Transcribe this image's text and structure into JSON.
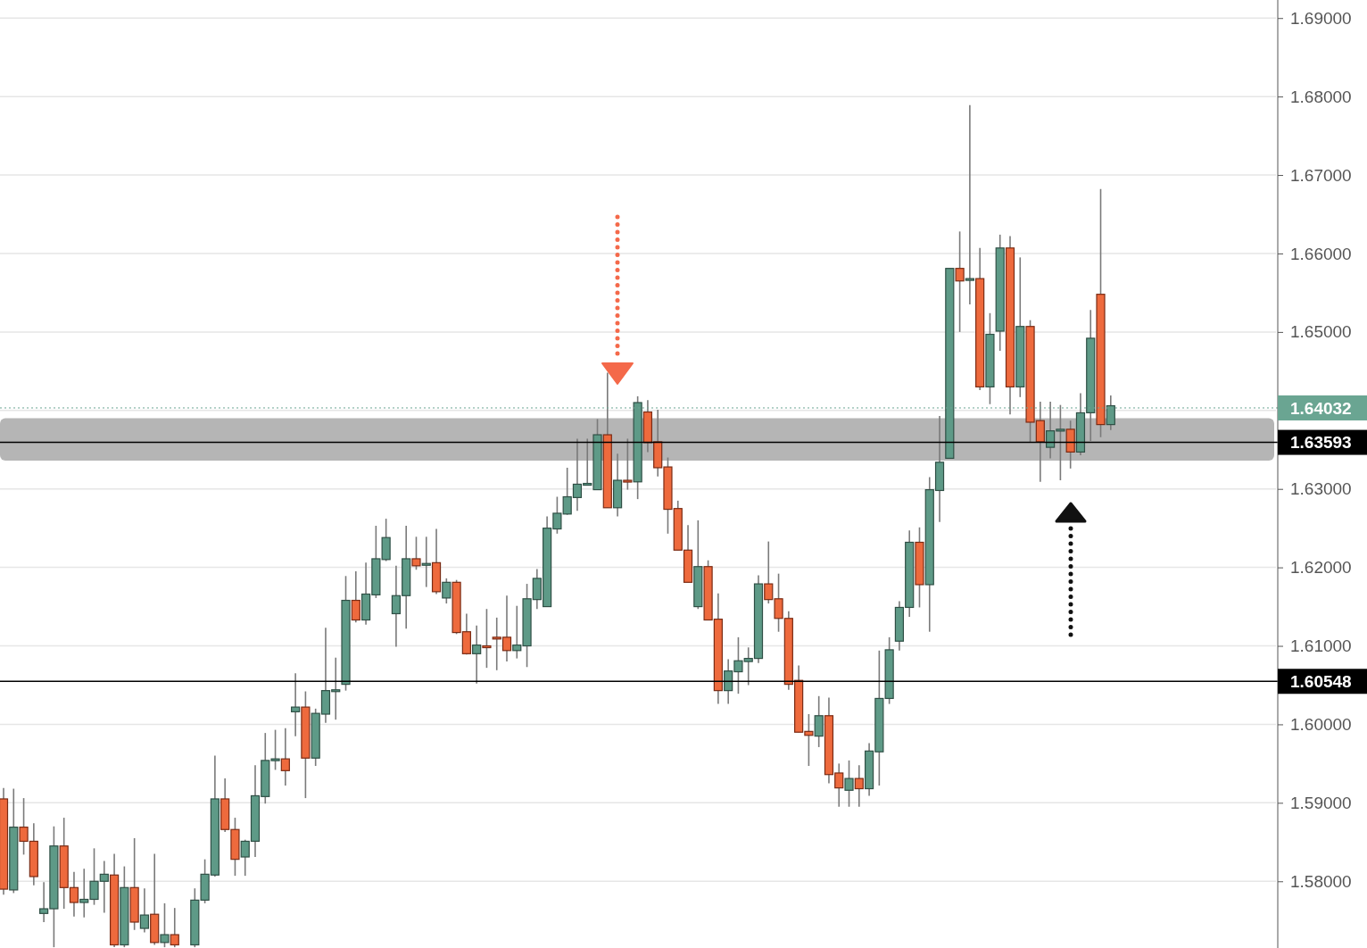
{
  "chart_data": {
    "type": "candlestick",
    "categories": [
      null,
      null,
      null,
      null,
      null,
      null,
      null,
      null,
      null,
      null,
      null,
      null,
      null,
      null,
      null,
      null,
      null,
      null,
      null,
      null,
      null,
      null,
      null,
      null,
      null,
      null,
      null,
      null,
      null,
      null,
      null,
      null,
      null,
      null,
      null,
      null,
      null,
      null,
      null,
      null,
      null,
      null,
      null,
      null,
      null,
      null,
      null,
      null,
      null,
      null,
      null,
      null,
      null,
      null,
      null,
      null,
      null,
      null,
      null,
      null,
      null,
      null,
      null,
      null,
      null,
      null,
      null,
      null,
      null,
      null,
      null,
      null,
      null,
      null,
      null,
      null,
      null,
      null,
      null,
      null,
      null,
      null,
      null,
      null,
      null,
      null,
      null,
      null,
      null,
      null,
      null,
      null,
      null,
      null,
      null,
      null,
      null,
      null,
      null,
      null,
      null,
      null,
      null,
      null,
      null,
      null,
      null,
      null,
      null,
      null,
      null,
      null,
      null,
      null,
      null,
      null,
      null,
      null,
      null,
      null,
      null,
      null,
      null,
      null,
      null,
      null,
      null
    ],
    "ohlc": [
      [
        1.5905,
        1.5919,
        1.5783,
        1.579
      ],
      [
        1.5789,
        1.5918,
        1.5785,
        1.5869
      ],
      [
        1.5869,
        1.5906,
        1.5834,
        1.5851
      ],
      [
        1.5851,
        1.5874,
        1.5795,
        1.5806
      ],
      [
        1.5759,
        1.5799,
        1.5748,
        1.5765
      ],
      [
        1.5765,
        1.587,
        1.5716,
        1.5845
      ],
      [
        1.5845,
        1.5881,
        1.5765,
        1.5792
      ],
      [
        1.5792,
        1.5812,
        1.5755,
        1.5773
      ],
      [
        1.5773,
        1.5816,
        1.5754,
        1.5777
      ],
      [
        1.5777,
        1.5842,
        1.577,
        1.58
      ],
      [
        1.58,
        1.5826,
        1.576,
        1.5809
      ],
      [
        1.5808,
        1.5835,
        1.5716,
        1.5719
      ],
      [
        1.5719,
        1.5819,
        1.5716,
        1.5792
      ],
      [
        1.5792,
        1.5855,
        1.5738,
        1.5748
      ],
      [
        1.574,
        1.5791,
        1.5735,
        1.5757
      ],
      [
        1.5758,
        1.5835,
        1.5719,
        1.5722
      ],
      [
        1.5722,
        1.5772,
        1.5716,
        1.5732
      ],
      [
        1.5732,
        1.5766,
        1.5716,
        1.5719
      ],
      null,
      [
        1.5719,
        1.5791,
        1.5716,
        1.5776
      ],
      [
        1.5776,
        1.5828,
        1.5772,
        1.5809
      ],
      [
        1.5808,
        1.596,
        1.5806,
        1.5905
      ],
      [
        1.5905,
        1.5931,
        1.5863,
        1.5866
      ],
      [
        1.5866,
        1.5881,
        1.5807,
        1.5828
      ],
      [
        1.5831,
        1.5853,
        1.5807,
        1.5851
      ],
      [
        1.5851,
        1.5948,
        1.5831,
        1.5909
      ],
      [
        1.5908,
        1.5989,
        1.5899,
        1.5954
      ],
      [
        1.5954,
        1.5993,
        1.5942,
        1.5956
      ],
      [
        1.5956,
        1.5995,
        1.5922,
        1.5941
      ],
      [
        1.6016,
        1.6065,
        1.5985,
        1.6022
      ],
      [
        1.6022,
        1.6042,
        1.5906,
        1.5957
      ],
      [
        1.5957,
        1.602,
        1.5947,
        1.6014
      ],
      [
        1.6013,
        1.6123,
        1.6002,
        1.6043
      ],
      [
        1.6043,
        1.6085,
        1.6006,
        1.6044
      ],
      [
        1.6051,
        1.6189,
        1.6043,
        1.6158
      ],
      [
        1.6158,
        1.6195,
        1.613,
        1.6133
      ],
      [
        1.6133,
        1.6206,
        1.6127,
        1.6166
      ],
      [
        1.6165,
        1.6253,
        1.6161,
        1.6211
      ],
      [
        1.621,
        1.6262,
        1.6208,
        1.6238
      ],
      [
        1.6141,
        1.6202,
        1.6099,
        1.6164
      ],
      [
        1.6164,
        1.6253,
        1.6122,
        1.6211
      ],
      [
        1.6211,
        1.6239,
        1.6197,
        1.6202
      ],
      [
        1.6203,
        1.6239,
        1.6175,
        1.6205
      ],
      [
        1.6206,
        1.6249,
        1.6166,
        1.6169
      ],
      [
        1.6161,
        1.6186,
        1.6154,
        1.6181
      ],
      [
        1.6181,
        1.6184,
        1.6115,
        1.6117
      ],
      [
        1.6118,
        1.6141,
        1.6089,
        1.609
      ],
      [
        1.609,
        1.6126,
        1.6052,
        1.6101
      ],
      [
        1.61,
        1.6147,
        1.6072,
        1.6099
      ],
      [
        1.6111,
        1.6136,
        1.6069,
        1.611
      ],
      [
        1.6111,
        1.6164,
        1.608,
        1.6094
      ],
      [
        1.6094,
        1.6151,
        1.6084,
        1.6101
      ],
      [
        1.61,
        1.6179,
        1.6073,
        1.616
      ],
      [
        1.6159,
        1.6198,
        1.6147,
        1.6186
      ],
      [
        1.615,
        1.6265,
        1.615,
        1.625
      ],
      [
        1.6249,
        1.629,
        1.6243,
        1.6269
      ],
      [
        1.6268,
        1.6327,
        1.6267,
        1.629
      ],
      [
        1.6289,
        1.6364,
        1.6272,
        1.6306
      ],
      [
        1.6305,
        1.6364,
        1.6305,
        1.6307
      ],
      [
        1.6299,
        1.6389,
        1.6299,
        1.6369
      ],
      [
        1.6369,
        1.6448,
        1.6276,
        1.6276
      ],
      [
        1.6276,
        1.6345,
        1.6265,
        1.6311
      ],
      [
        1.6311,
        1.6364,
        1.6299,
        1.631
      ],
      [
        1.6309,
        1.6418,
        1.6287,
        1.641
      ],
      [
        1.6398,
        1.6413,
        1.6347,
        1.6359
      ],
      [
        1.636,
        1.6401,
        1.6316,
        1.6327
      ],
      [
        1.6328,
        1.634,
        1.6243,
        1.6274
      ],
      [
        1.6275,
        1.6285,
        1.6222,
        1.6222
      ],
      [
        1.6222,
        1.6254,
        1.6181,
        1.6181
      ],
      [
        1.615,
        1.626,
        1.6147,
        1.6201
      ],
      [
        1.6201,
        1.6209,
        1.6133,
        1.6133
      ],
      [
        1.6134,
        1.6167,
        1.6026,
        1.6043
      ],
      [
        1.6043,
        1.6083,
        1.6026,
        1.6068
      ],
      [
        1.6067,
        1.6111,
        1.6039,
        1.6081
      ],
      [
        1.608,
        1.6098,
        1.605,
        1.6084
      ],
      [
        1.6084,
        1.619,
        1.6078,
        1.6179
      ],
      [
        1.6179,
        1.6233,
        1.6154,
        1.6159
      ],
      [
        1.616,
        1.6192,
        1.6118,
        1.6135
      ],
      [
        1.6135,
        1.6144,
        1.6044,
        1.6051
      ],
      [
        1.6056,
        1.6075,
        1.599,
        1.599
      ],
      [
        1.5991,
        1.6013,
        1.5947,
        1.5986
      ],
      [
        1.5985,
        1.6036,
        1.5971,
        1.6011
      ],
      [
        1.6011,
        1.6034,
        1.5925,
        1.5936
      ],
      [
        1.5938,
        1.595,
        1.5895,
        1.5919
      ],
      [
        1.5916,
        1.5954,
        1.5895,
        1.5931
      ],
      [
        1.5931,
        1.5948,
        1.5895,
        1.5918
      ],
      [
        1.5918,
        1.5976,
        1.5909,
        1.5966
      ],
      [
        1.5965,
        1.6094,
        1.5922,
        1.6033
      ],
      [
        1.6033,
        1.6111,
        1.6026,
        1.6095
      ],
      [
        1.6106,
        1.6157,
        1.6094,
        1.6149
      ],
      [
        1.6149,
        1.6247,
        1.6137,
        1.6232
      ],
      [
        1.6232,
        1.6251,
        1.6149,
        1.6178
      ],
      [
        1.6178,
        1.6315,
        1.6118,
        1.6299
      ],
      [
        1.6298,
        1.6393,
        1.6258,
        1.6334
      ],
      [
        1.6339,
        1.6581,
        1.6339,
        1.6581
      ],
      [
        1.6581,
        1.6628,
        1.65,
        1.6565
      ],
      [
        1.6566,
        1.6789,
        1.6535,
        1.6568
      ],
      [
        1.6568,
        1.6607,
        1.6426,
        1.643
      ],
      [
        1.643,
        1.6524,
        1.6408,
        1.6497
      ],
      [
        1.6501,
        1.6624,
        1.6476,
        1.6607
      ],
      [
        1.6607,
        1.6622,
        1.6395,
        1.643
      ],
      [
        1.643,
        1.6595,
        1.6417,
        1.6507
      ],
      [
        1.6507,
        1.6515,
        1.636,
        1.6385
      ],
      [
        1.6387,
        1.6411,
        1.6309,
        1.636
      ],
      [
        1.6353,
        1.6411,
        1.6339,
        1.6374
      ],
      [
        1.6374,
        1.6407,
        1.6311,
        1.6376
      ],
      [
        1.6376,
        1.6387,
        1.6326,
        1.6347
      ],
      [
        1.6347,
        1.6422,
        1.6343,
        1.6397
      ],
      [
        1.6397,
        1.6528,
        1.6361,
        1.6492
      ],
      [
        1.6548,
        1.6682,
        1.6366,
        1.6382
      ],
      [
        1.6382,
        1.6419,
        1.6375,
        1.6406
      ],
      null,
      null,
      null,
      null,
      null,
      null,
      null,
      null,
      null,
      null,
      null,
      null,
      null,
      null,
      null,
      null
    ],
    "ylim": [
      1.5715,
      1.6923
    ],
    "yticks": [
      {
        "value": 1.58,
        "label": "1.58000"
      },
      {
        "value": 1.59,
        "label": "1.59000"
      },
      {
        "value": 1.6,
        "label": "1.60000"
      },
      {
        "value": 1.61,
        "label": "1.61000"
      },
      {
        "value": 1.62,
        "label": "1.62000"
      },
      {
        "value": 1.63,
        "label": "1.63000"
      },
      {
        "value": 1.64,
        "label": null
      },
      {
        "value": 1.65,
        "label": "1.65000"
      },
      {
        "value": 1.66,
        "label": "1.66000"
      },
      {
        "value": 1.67,
        "label": "1.67000"
      },
      {
        "value": 1.68,
        "label": "1.68000"
      },
      {
        "value": 1.69,
        "label": "1.69000"
      }
    ],
    "grid": "y",
    "tick_labels": "y",
    "ref_lines": [
      {
        "axis": "y",
        "value": 1.63593,
        "label": "1.63593",
        "color": "#000000"
      },
      {
        "axis": "y",
        "value": 1.60548,
        "label": "1.60548",
        "color": "#000000"
      },
      {
        "axis": "y",
        "value": 1.64032,
        "label": "1.64032",
        "color": "#6aa592",
        "line_style": "dotted"
      }
    ],
    "bands": [
      {
        "axis": "y",
        "from": 1.6336,
        "to": 1.639,
        "color": "#a8a8a8"
      }
    ]
  }
}
